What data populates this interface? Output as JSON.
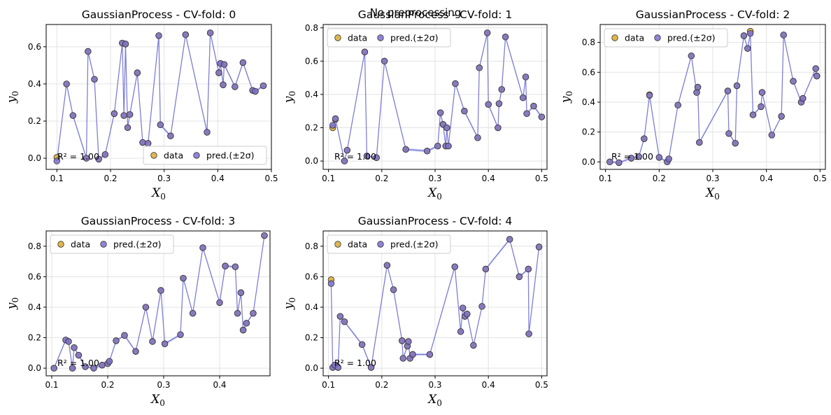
{
  "figure": {
    "suptitle": "No preprocessing",
    "legend_labels": [
      "data",
      "pred.(±2σ)"
    ],
    "colors": {
      "data": "#d9a930",
      "pred": "#7b70d0",
      "line": "#6a6ad0",
      "band": "#a8b6f0",
      "grid": "#e3e3e3",
      "edge": "#333333"
    }
  },
  "chart_data": [
    {
      "type": "scatter",
      "title": "GaussianProcess - CV-fold: 0",
      "xlabel": "X_0",
      "ylabel": "y_0",
      "xlim": [
        0.08,
        0.5
      ],
      "ylim": [
        -0.06,
        0.72
      ],
      "xticks": [
        0.1,
        0.2,
        0.3,
        0.4,
        0.5
      ],
      "xtick_labels": [
        "0.1",
        "0.2",
        "0.3",
        "0.4",
        "0.5"
      ],
      "yticks": [
        0.0,
        0.2,
        0.4,
        0.6
      ],
      "ytick_labels": [
        "0.0",
        "0.2",
        "0.4",
        "0.6"
      ],
      "grid": true,
      "legend": "lower-right",
      "annotation": "R² = 1.00",
      "series": [
        {
          "name": "data",
          "x": [
            0.1,
            0.118,
            0.13,
            0.155,
            0.158,
            0.17,
            0.178,
            0.19,
            0.207,
            0.222,
            0.225,
            0.228,
            0.232,
            0.236,
            0.25,
            0.26,
            0.27,
            0.29,
            0.293,
            0.312,
            0.34,
            0.38,
            0.386,
            0.402,
            0.405,
            0.41,
            0.412,
            0.432,
            0.447,
            0.465,
            0.47,
            0.485
          ],
          "y": [
            0.005,
            0.4,
            0.23,
            0.0,
            0.575,
            0.425,
            -0.005,
            0.02,
            0.24,
            0.62,
            0.23,
            0.615,
            0.165,
            0.235,
            0.46,
            0.085,
            0.08,
            0.66,
            0.18,
            0.12,
            0.665,
            0.14,
            0.675,
            0.46,
            0.51,
            0.395,
            0.505,
            0.385,
            0.515,
            0.365,
            0.36,
            0.39
          ]
        },
        {
          "name": "pred.(±2σ)",
          "x": [
            0.1,
            0.118,
            0.13,
            0.155,
            0.158,
            0.17,
            0.178,
            0.19,
            0.207,
            0.222,
            0.225,
            0.228,
            0.232,
            0.236,
            0.25,
            0.26,
            0.27,
            0.29,
            0.293,
            0.312,
            0.34,
            0.38,
            0.386,
            0.402,
            0.405,
            0.41,
            0.412,
            0.432,
            0.447,
            0.465,
            0.47,
            0.485
          ],
          "y": [
            -0.015,
            0.4,
            0.23,
            0.0,
            0.575,
            0.425,
            -0.005,
            0.02,
            0.24,
            0.62,
            0.23,
            0.615,
            0.165,
            0.235,
            0.46,
            0.085,
            0.08,
            0.66,
            0.18,
            0.12,
            0.665,
            0.14,
            0.675,
            0.46,
            0.51,
            0.395,
            0.505,
            0.385,
            0.515,
            0.365,
            0.36,
            0.39
          ]
        }
      ]
    },
    {
      "type": "scatter",
      "title": "GaussianProcess - CV-fold: 1",
      "xlabel": "X_0",
      "ylabel": "y_0",
      "xlim": [
        0.09,
        0.51
      ],
      "ylim": [
        -0.05,
        0.82
      ],
      "xticks": [
        0.1,
        0.2,
        0.3,
        0.4,
        0.5
      ],
      "xtick_labels": [
        "0.1",
        "0.2",
        "0.3",
        "0.4",
        "0.5"
      ],
      "yticks": [
        0.0,
        0.2,
        0.4,
        0.6,
        0.8
      ],
      "ytick_labels": [
        "0.0",
        "0.2",
        "0.4",
        "0.6",
        "0.8"
      ],
      "grid": true,
      "legend": "upper-left",
      "annotation": "R² = 1.00",
      "series": [
        {
          "name": "data",
          "x": [
            0.108,
            0.113,
            0.13,
            0.135,
            0.168,
            0.172,
            0.19,
            0.205,
            0.245,
            0.285,
            0.305,
            0.31,
            0.315,
            0.32,
            0.322,
            0.325,
            0.338,
            0.355,
            0.38,
            0.383,
            0.398,
            0.4,
            0.418,
            0.42,
            0.425,
            0.432,
            0.465,
            0.47,
            0.472,
            0.485,
            0.5
          ],
          "y": [
            0.2,
            0.25,
            0.0,
            0.065,
            0.655,
            0.03,
            0.02,
            0.6,
            0.07,
            0.06,
            0.09,
            0.29,
            0.22,
            0.09,
            0.2,
            0.09,
            0.465,
            0.3,
            0.14,
            0.56,
            0.77,
            0.34,
            0.2,
            0.345,
            0.43,
            0.745,
            0.38,
            0.505,
            0.285,
            0.33,
            0.265
          ]
        },
        {
          "name": "pred.(±2σ)",
          "x": [
            0.108,
            0.113,
            0.13,
            0.135,
            0.168,
            0.172,
            0.19,
            0.205,
            0.245,
            0.285,
            0.305,
            0.31,
            0.315,
            0.32,
            0.322,
            0.325,
            0.338,
            0.355,
            0.38,
            0.383,
            0.398,
            0.4,
            0.418,
            0.42,
            0.425,
            0.432,
            0.465,
            0.47,
            0.472,
            0.485,
            0.5
          ],
          "y": [
            0.215,
            0.255,
            0.0,
            0.065,
            0.655,
            0.03,
            0.02,
            0.6,
            0.07,
            0.06,
            0.09,
            0.29,
            0.22,
            0.09,
            0.2,
            0.09,
            0.465,
            0.3,
            0.14,
            0.56,
            0.77,
            0.34,
            0.2,
            0.345,
            0.43,
            0.745,
            0.38,
            0.505,
            0.285,
            0.33,
            0.265
          ]
        }
      ]
    },
    {
      "type": "scatter",
      "title": "GaussianProcess - CV-fold: 2",
      "xlabel": "X_0",
      "ylabel": "y_0",
      "xlim": [
        0.09,
        0.51
      ],
      "ylim": [
        -0.05,
        0.92
      ],
      "xticks": [
        0.1,
        0.2,
        0.3,
        0.4,
        0.5
      ],
      "xtick_labels": [
        "0.1",
        "0.2",
        "0.3",
        "0.4",
        "0.5"
      ],
      "yticks": [
        0.0,
        0.2,
        0.4,
        0.6,
        0.8
      ],
      "ytick_labels": [
        "0.0",
        "0.2",
        "0.4",
        "0.6",
        "0.8"
      ],
      "grid": true,
      "legend": "upper-left",
      "annotation": "R² = 1.00",
      "series": [
        {
          "name": "data",
          "x": [
            0.108,
            0.125,
            0.148,
            0.162,
            0.172,
            0.182,
            0.2,
            0.215,
            0.218,
            0.235,
            0.26,
            0.27,
            0.272,
            0.275,
            0.328,
            0.33,
            0.342,
            0.345,
            0.358,
            0.365,
            0.37,
            0.375,
            0.39,
            0.392,
            0.41,
            0.428,
            0.432,
            0.45,
            0.465,
            0.468,
            0.492,
            0.494
          ],
          "y": [
            0.0,
            -0.005,
            0.025,
            0.035,
            0.155,
            0.45,
            0.03,
            0.0,
            0.02,
            0.38,
            0.71,
            0.465,
            0.5,
            0.13,
            0.475,
            0.19,
            0.125,
            0.51,
            0.845,
            0.76,
            0.875,
            0.315,
            0.37,
            0.465,
            0.18,
            0.305,
            0.85,
            0.54,
            0.4,
            0.425,
            0.625,
            0.575
          ]
        },
        {
          "name": "pred.(±2σ)",
          "x": [
            0.108,
            0.125,
            0.148,
            0.162,
            0.172,
            0.182,
            0.2,
            0.215,
            0.218,
            0.235,
            0.26,
            0.27,
            0.272,
            0.275,
            0.328,
            0.33,
            0.342,
            0.345,
            0.358,
            0.365,
            0.37,
            0.375,
            0.39,
            0.392,
            0.41,
            0.428,
            0.432,
            0.45,
            0.465,
            0.468,
            0.492,
            0.494
          ],
          "y": [
            0.0,
            -0.005,
            0.025,
            0.035,
            0.155,
            0.445,
            0.03,
            0.0,
            0.02,
            0.38,
            0.71,
            0.465,
            0.5,
            0.13,
            0.475,
            0.19,
            0.125,
            0.51,
            0.845,
            0.76,
            0.86,
            0.315,
            0.37,
            0.465,
            0.18,
            0.305,
            0.85,
            0.54,
            0.4,
            0.425,
            0.625,
            0.575
          ]
        }
      ]
    },
    {
      "type": "scatter",
      "title": "GaussianProcess - CV-fold: 3",
      "xlabel": "X_0",
      "ylabel": "y_0",
      "xlim": [
        0.09,
        0.49
      ],
      "ylim": [
        -0.05,
        0.9
      ],
      "xticks": [
        0.1,
        0.2,
        0.3,
        0.4
      ],
      "xtick_labels": [
        "0.1",
        "0.2",
        "0.3",
        "0.4"
      ],
      "yticks": [
        0.0,
        0.2,
        0.4,
        0.6,
        0.8
      ],
      "ytick_labels": [
        "0.0",
        "0.2",
        "0.4",
        "0.6",
        "0.8"
      ],
      "grid": true,
      "legend": "upper-left",
      "annotation": "R² = 1.00",
      "series": [
        {
          "name": "data",
          "x": [
            0.104,
            0.125,
            0.13,
            0.137,
            0.14,
            0.148,
            0.16,
            0.175,
            0.19,
            0.2,
            0.203,
            0.215,
            0.23,
            0.25,
            0.268,
            0.28,
            0.295,
            0.302,
            0.33,
            0.335,
            0.352,
            0.37,
            0.4,
            0.41,
            0.428,
            0.432,
            0.438,
            0.442,
            0.448,
            0.46,
            0.48
          ],
          "y": [
            0.0,
            0.185,
            0.175,
            0.0,
            0.135,
            0.085,
            0.01,
            0.0,
            0.02,
            0.03,
            0.045,
            0.18,
            0.215,
            0.11,
            0.4,
            0.175,
            0.51,
            0.16,
            0.22,
            0.59,
            0.36,
            0.79,
            0.43,
            0.67,
            0.665,
            0.36,
            0.495,
            0.25,
            0.295,
            0.36,
            0.87
          ]
        },
        {
          "name": "pred.(±2σ)",
          "x": [
            0.104,
            0.125,
            0.13,
            0.137,
            0.14,
            0.148,
            0.16,
            0.175,
            0.19,
            0.2,
            0.203,
            0.215,
            0.23,
            0.25,
            0.268,
            0.28,
            0.295,
            0.302,
            0.33,
            0.335,
            0.352,
            0.37,
            0.4,
            0.41,
            0.428,
            0.432,
            0.438,
            0.442,
            0.448,
            0.46,
            0.48
          ],
          "y": [
            0.0,
            0.185,
            0.175,
            0.0,
            0.135,
            0.085,
            0.01,
            0.0,
            0.02,
            0.03,
            0.045,
            0.18,
            0.215,
            0.11,
            0.4,
            0.175,
            0.51,
            0.16,
            0.22,
            0.59,
            0.36,
            0.79,
            0.43,
            0.67,
            0.665,
            0.36,
            0.495,
            0.25,
            0.295,
            0.36,
            0.87
          ]
        }
      ]
    },
    {
      "type": "scatter",
      "title": "GaussianProcess - CV-fold: 4",
      "xlabel": "X_0",
      "ylabel": "y_0",
      "xlim": [
        0.09,
        0.51
      ],
      "ylim": [
        -0.05,
        0.9
      ],
      "xticks": [
        0.1,
        0.2,
        0.3,
        0.4,
        0.5
      ],
      "xtick_labels": [
        "0.1",
        "0.2",
        "0.3",
        "0.4",
        "0.5"
      ],
      "yticks": [
        0.0,
        0.2,
        0.4,
        0.6,
        0.8
      ],
      "ytick_labels": [
        "0.0",
        "0.2",
        "0.4",
        "0.6",
        "0.8"
      ],
      "grid": true,
      "legend": "upper-left",
      "annotation": "R² = 1.00",
      "series": [
        {
          "name": "data",
          "x": [
            0.105,
            0.108,
            0.112,
            0.118,
            0.122,
            0.13,
            0.163,
            0.18,
            0.21,
            0.222,
            0.238,
            0.24,
            0.248,
            0.25,
            0.253,
            0.258,
            0.29,
            0.337,
            0.348,
            0.352,
            0.356,
            0.36,
            0.372,
            0.388,
            0.395,
            0.44,
            0.458,
            0.475,
            0.476,
            0.495
          ],
          "y": [
            0.58,
            0.005,
            0.02,
            0.005,
            0.34,
            0.305,
            0.155,
            0.005,
            0.675,
            0.515,
            0.18,
            0.065,
            0.145,
            0.175,
            0.065,
            0.09,
            0.09,
            0.665,
            0.24,
            0.395,
            0.34,
            0.355,
            0.15,
            0.405,
            0.65,
            0.845,
            0.6,
            0.65,
            0.225,
            0.795
          ]
        },
        {
          "name": "pred.(±2σ)",
          "x": [
            0.105,
            0.108,
            0.112,
            0.118,
            0.122,
            0.13,
            0.163,
            0.18,
            0.21,
            0.222,
            0.238,
            0.24,
            0.248,
            0.25,
            0.253,
            0.258,
            0.29,
            0.337,
            0.348,
            0.352,
            0.356,
            0.36,
            0.372,
            0.388,
            0.395,
            0.44,
            0.458,
            0.475,
            0.476,
            0.495
          ],
          "y": [
            0.555,
            0.005,
            0.02,
            0.005,
            0.34,
            0.305,
            0.155,
            0.005,
            0.675,
            0.515,
            0.18,
            0.065,
            0.145,
            0.175,
            0.065,
            0.09,
            0.09,
            0.665,
            0.24,
            0.395,
            0.34,
            0.355,
            0.15,
            0.405,
            0.65,
            0.845,
            0.6,
            0.65,
            0.225,
            0.795
          ]
        }
      ]
    }
  ]
}
